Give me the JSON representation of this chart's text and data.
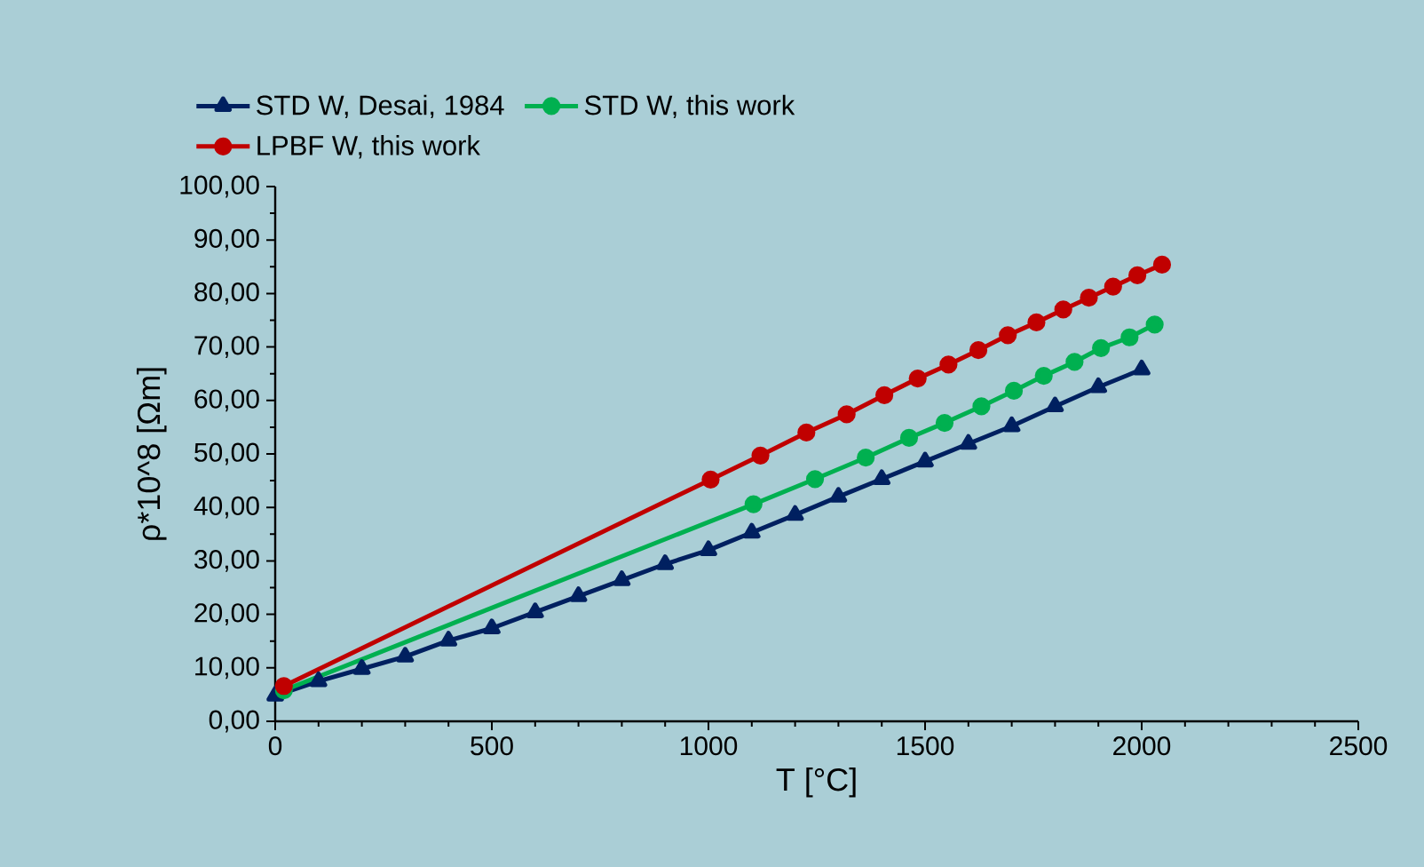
{
  "chart_data": {
    "type": "line",
    "xlabel": "T [°C]",
    "ylabel": "ρ*10^8 [Ωm]",
    "legend": "top",
    "grid": false,
    "xlim": [
      0,
      2500
    ],
    "xticks": [
      0,
      500,
      1000,
      1500,
      2000,
      2500
    ],
    "ylim": [
      0,
      100
    ],
    "yticks": [
      {
        "value": 0,
        "label": "0,00"
      },
      {
        "value": 10,
        "label": "10,00"
      },
      {
        "value": 20,
        "label": "20,00"
      },
      {
        "value": 30,
        "label": "30,00"
      },
      {
        "value": 40,
        "label": "40,00"
      },
      {
        "value": 50,
        "label": "50,00"
      },
      {
        "value": 60,
        "label": "60,00"
      },
      {
        "value": 70,
        "label": "70,00"
      },
      {
        "value": 80,
        "label": "80,00"
      },
      {
        "value": 90,
        "label": "90,00"
      },
      {
        "value": 100,
        "label": "100,00"
      }
    ],
    "series": [
      {
        "name": "STD W, Desai, 1984",
        "color": "#002060",
        "marker": "triangle",
        "x": [
          0,
          100,
          200,
          300,
          400,
          500,
          600,
          700,
          800,
          900,
          1000,
          1100,
          1200,
          1300,
          1400,
          1500,
          1600,
          1700,
          1800,
          1900,
          2000
        ],
        "values": [
          4.8,
          7.5,
          9.8,
          12.1,
          15.1,
          17.4,
          20.4,
          23.4,
          26.4,
          29.4,
          32.0,
          35.3,
          38.6,
          42.0,
          45.3,
          48.6,
          51.9,
          55.2,
          58.9,
          62.5,
          65.8
        ]
      },
      {
        "name": "STD W, this work",
        "color": "#00b050",
        "marker": "circle",
        "x": [
          20,
          1104,
          1246,
          1363,
          1463,
          1545,
          1630,
          1705,
          1774,
          1845,
          1906,
          1972,
          2030
        ],
        "values": [
          5.8,
          40.6,
          45.3,
          49.3,
          53.0,
          55.8,
          58.9,
          61.8,
          64.6,
          67.2,
          69.8,
          71.8,
          74.2
        ]
      },
      {
        "name": "LPBF W, this work",
        "color": "#c00000",
        "marker": "circle",
        "x": [
          20,
          1005,
          1120,
          1226,
          1319,
          1406,
          1483,
          1554,
          1623,
          1691,
          1757,
          1819,
          1878,
          1934,
          1990,
          2047
        ],
        "values": [
          6.6,
          45.2,
          49.7,
          54.0,
          57.4,
          61.0,
          64.1,
          66.7,
          69.4,
          72.2,
          74.6,
          77.0,
          79.2,
          81.3,
          83.4,
          85.4
        ]
      }
    ]
  }
}
